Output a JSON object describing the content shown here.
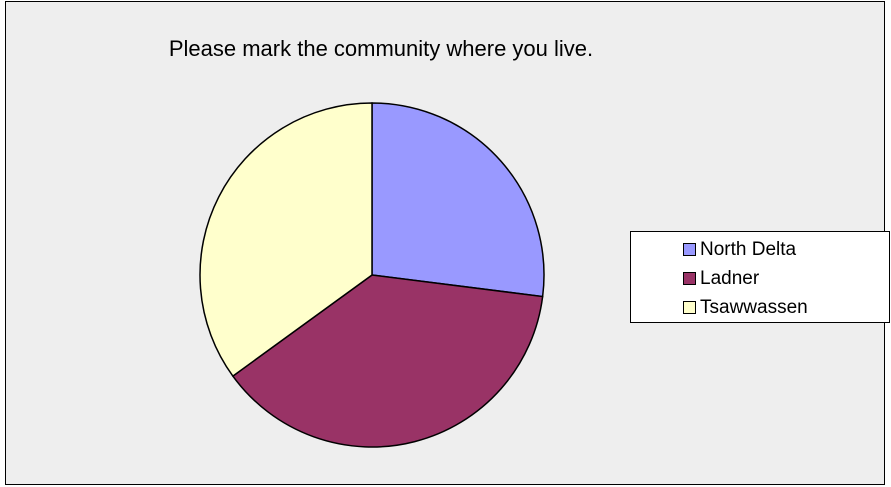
{
  "chart_data": {
    "type": "pie",
    "title": "Please mark the community where you live.",
    "categories": [
      "North Delta",
      "Ladner",
      "Tsawwassen"
    ],
    "values": [
      27,
      38,
      35
    ],
    "colors": [
      "#9999ff",
      "#993366",
      "#ffffcc"
    ],
    "legend_position": "right"
  }
}
